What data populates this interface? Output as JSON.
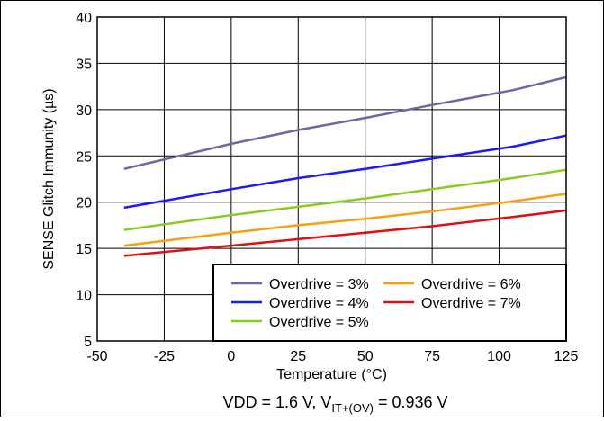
{
  "chart_data": {
    "type": "line",
    "title": "",
    "xlabel": "Temperature (°C)",
    "ylabel": "SENSE Glitch Immunity (µs)",
    "xlim": [
      -50,
      125
    ],
    "ylim": [
      5,
      40
    ],
    "xticks": [
      -50,
      -25,
      0,
      25,
      50,
      75,
      100,
      125
    ],
    "yticks": [
      5,
      10,
      15,
      20,
      25,
      30,
      35,
      40
    ],
    "grid": true,
    "legend_placement": "bottom-right",
    "series": [
      {
        "name": "Overdrive = 3%",
        "color": "#6a6aa0",
        "x": [
          -40,
          0,
          25,
          50,
          75,
          105,
          125
        ],
        "y": [
          23.6,
          26.3,
          27.8,
          29.1,
          30.5,
          32.1,
          33.5
        ]
      },
      {
        "name": "Overdrive = 4%",
        "color": "#1c1cf0",
        "x": [
          -40,
          0,
          25,
          50,
          75,
          105,
          125
        ],
        "y": [
          19.4,
          21.4,
          22.6,
          23.6,
          24.7,
          26.0,
          27.2
        ]
      },
      {
        "name": "Overdrive = 5%",
        "color": "#88cc22",
        "x": [
          -40,
          0,
          25,
          50,
          75,
          105,
          125
        ],
        "y": [
          17.0,
          18.6,
          19.5,
          20.4,
          21.4,
          22.6,
          23.5
        ]
      },
      {
        "name": "Overdrive = 6%",
        "color": "#f5a016",
        "x": [
          -40,
          0,
          25,
          50,
          75,
          105,
          125
        ],
        "y": [
          15.3,
          16.7,
          17.5,
          18.2,
          19.0,
          20.1,
          20.9
        ]
      },
      {
        "name": "Overdrive = 7%",
        "color": "#e01010",
        "x": [
          -40,
          0,
          25,
          50,
          75,
          105,
          125
        ],
        "y": [
          14.2,
          15.3,
          16.0,
          16.7,
          17.4,
          18.4,
          19.1
        ]
      }
    ],
    "legend_layout": [
      [
        "Overdrive = 3%",
        "Overdrive = 6%"
      ],
      [
        "Overdrive = 4%",
        "Overdrive = 7%"
      ],
      [
        "Overdrive = 5%"
      ]
    ],
    "caption": {
      "prefix": "VDD = 1.6 V, V",
      "subscript": "IT+(OV)",
      "suffix": " = 0.936 V"
    }
  }
}
